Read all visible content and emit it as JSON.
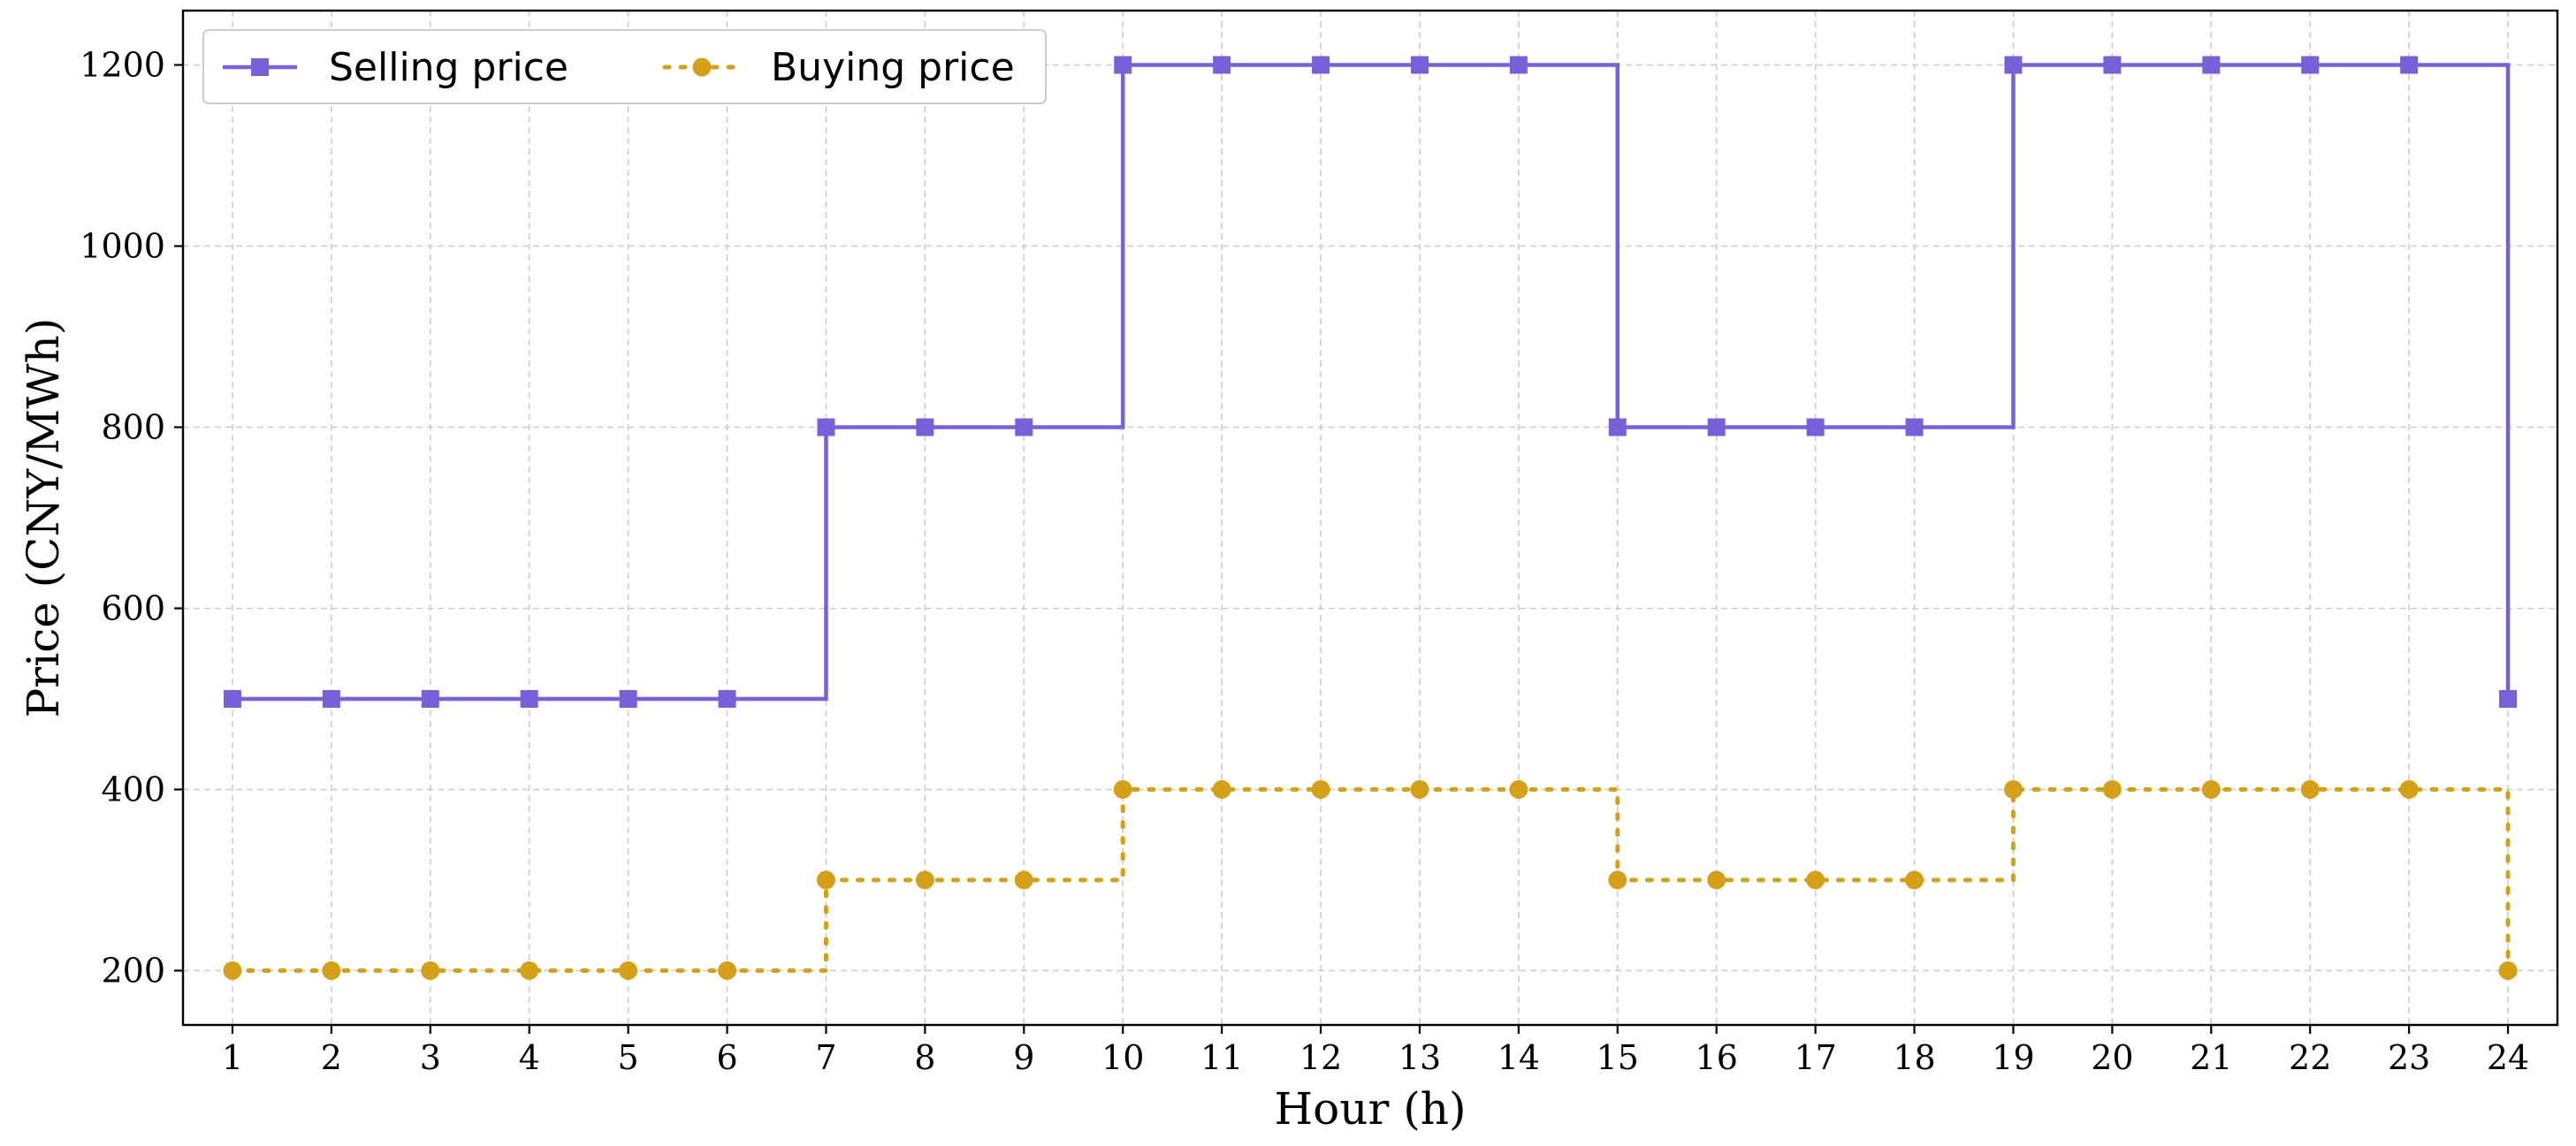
{
  "chart_data": {
    "type": "line",
    "step": "post",
    "x": [
      1,
      2,
      3,
      4,
      5,
      6,
      7,
      8,
      9,
      10,
      11,
      12,
      13,
      14,
      15,
      16,
      17,
      18,
      19,
      20,
      21,
      22,
      23,
      24
    ],
    "series": [
      {
        "name": "Selling price",
        "color": "#7860d8",
        "marker": "square",
        "line_style": "solid",
        "values": [
          500,
          500,
          500,
          500,
          500,
          500,
          800,
          800,
          800,
          1200,
          1200,
          1200,
          1200,
          1200,
          800,
          800,
          800,
          800,
          1200,
          1200,
          1200,
          1200,
          1200,
          500
        ]
      },
      {
        "name": "Buying price",
        "color": "#d4a017",
        "marker": "circle",
        "line_style": "dotted",
        "values": [
          200,
          200,
          200,
          200,
          200,
          200,
          300,
          300,
          300,
          400,
          400,
          400,
          400,
          400,
          300,
          300,
          300,
          300,
          400,
          400,
          400,
          400,
          400,
          200
        ]
      }
    ],
    "xlabel": "Hour (h)",
    "ylabel": "Price (CNY/MWh)",
    "x_ticks": [
      "1",
      "2",
      "3",
      "4",
      "5",
      "6",
      "7",
      "8",
      "9",
      "10",
      "11",
      "12",
      "13",
      "14",
      "15",
      "16",
      "17",
      "18",
      "19",
      "20",
      "21",
      "22",
      "23",
      "24"
    ],
    "y_ticks": [
      "200",
      "400",
      "600",
      "800",
      "1000",
      "1200"
    ],
    "xlim": [
      0.5,
      24.5
    ],
    "ylim": [
      140,
      1260
    ],
    "grid": true,
    "legend_position": "top-left",
    "legend_columns": 2
  }
}
